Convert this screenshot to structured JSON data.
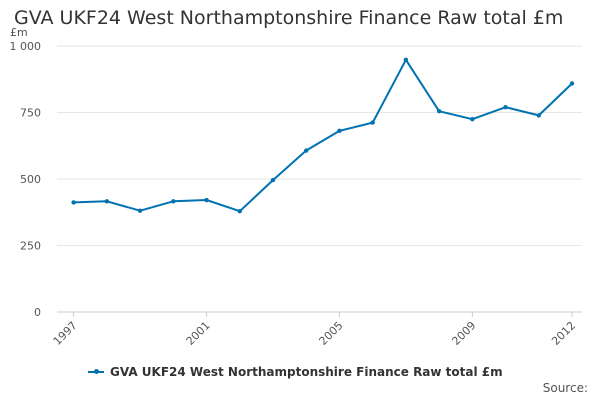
{
  "title": "GVA UKF24 West Northamptonshire Finance Raw total £m",
  "source_label": "Source:",
  "colors": {
    "series": "#0072b2",
    "grid": "#e6e6e6",
    "axis_text": "#555555"
  },
  "chart_data": {
    "type": "line",
    "title": "GVA UKF24 West Northamptonshire Finance Raw total £m",
    "ylabel": "£m",
    "xlabel": "",
    "ylim": [
      0,
      1000
    ],
    "yticks": [
      0,
      250,
      500,
      750,
      1000
    ],
    "ytick_labels": [
      "0",
      "250",
      "500",
      "750",
      "1 000"
    ],
    "xticks": [
      1997,
      2001,
      2005,
      2009,
      2012
    ],
    "xtick_labels": [
      "1997",
      "2001",
      "2005",
      "2009",
      "2012"
    ],
    "grid": true,
    "legend": "bottom",
    "series": [
      {
        "name": "GVA UKF24 West Northamptonshire Finance Raw total £m",
        "x": [
          1997,
          1998,
          1999,
          2000,
          2001,
          2002,
          2003,
          2004,
          2005,
          2006,
          2007,
          2008,
          2009,
          2010,
          2011,
          2012
        ],
        "y": [
          412,
          416,
          381,
          416,
          421,
          379,
          496,
          607,
          681,
          712,
          948,
          755,
          725,
          770,
          739,
          859
        ]
      }
    ]
  }
}
